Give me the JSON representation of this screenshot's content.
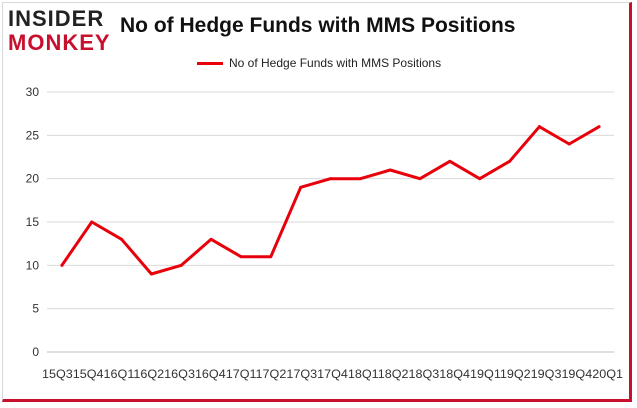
{
  "logo": {
    "line1": "INSIDER",
    "line2": "MONKEY"
  },
  "chart_data": {
    "type": "line",
    "title": "No of Hedge Funds with MMS Positions",
    "xlabel": "",
    "ylabel": "",
    "legend": "top-center",
    "grid": true,
    "ylim": [
      0,
      30
    ],
    "yticks": [
      0,
      5,
      10,
      15,
      20,
      25,
      30
    ],
    "categories": [
      "15Q3",
      "15Q4",
      "16Q1",
      "16Q2",
      "16Q3",
      "16Q4",
      "17Q1",
      "17Q2",
      "17Q3",
      "17Q4",
      "18Q1",
      "18Q2",
      "18Q3",
      "18Q4",
      "19Q1",
      "19Q2",
      "19Q3",
      "19Q4",
      "20Q1"
    ],
    "category_labels_joined": "15Q315Q416Q116Q216Q316Q417Q117Q217Q317Q418Q118Q218Q318Q419Q119Q219Q319Q420Q1",
    "series": [
      {
        "name": "No of Hedge Funds with MMS Positions",
        "color": "#e8000b",
        "values": [
          10,
          15,
          13,
          9,
          10,
          13,
          11,
          11,
          19,
          20,
          20,
          21,
          20,
          22,
          20,
          22,
          26,
          24,
          26
        ]
      }
    ]
  }
}
